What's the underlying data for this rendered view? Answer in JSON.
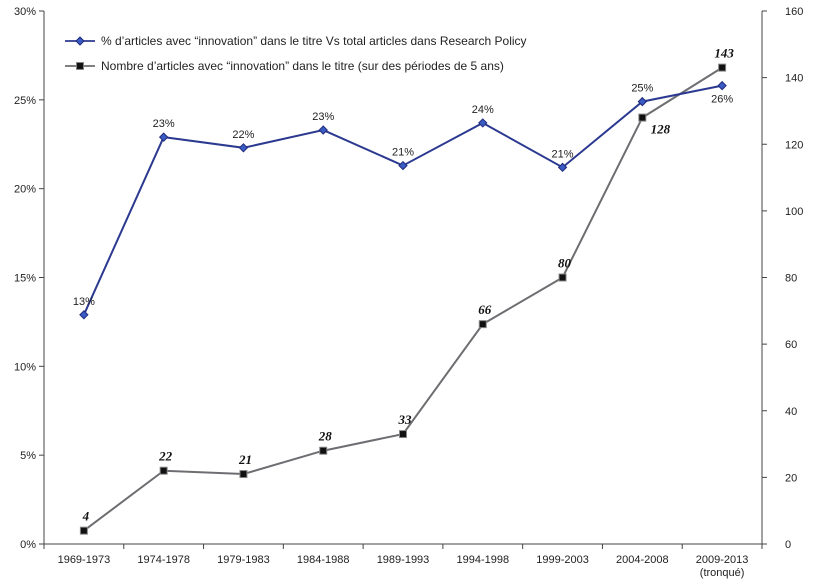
{
  "chart_data": {
    "type": "line",
    "categories": [
      "1969-1973",
      "1974-1978",
      "1979-1983",
      "1984-1988",
      "1989-1993",
      "1994-1998",
      "1999-2003",
      "2004-2008",
      "2009-2013"
    ],
    "category_sublabels": [
      "",
      "",
      "",
      "",
      "",
      "",
      "",
      "",
      "(tronqué)"
    ],
    "series": [
      {
        "name": "% d’articles avec “innovation” dans le titre Vs total articles dans Research Policy",
        "axis": "left",
        "color": "#2b3990",
        "marker": "diamond",
        "values": [
          12.9,
          22.9,
          22.3,
          23.3,
          21.3,
          23.7,
          21.2,
          24.9,
          25.8
        ],
        "labels": [
          "13%",
          "23%",
          "22%",
          "23%",
          "21%",
          "24%",
          "21%",
          "25%",
          "26%"
        ]
      },
      {
        "name": "Nombre d’articles avec “innovation” dans le titre (sur des périodes de 5 ans)",
        "axis": "right",
        "color": "#6d6e71",
        "marker": "square",
        "values": [
          4,
          22,
          21,
          28,
          33,
          66,
          80,
          128,
          143
        ],
        "labels": [
          "4",
          "22",
          "21",
          "28",
          "33",
          "66",
          "80",
          "128",
          "143"
        ]
      }
    ],
    "y_left": {
      "min": 0,
      "max": 30,
      "ticks": [
        0,
        5,
        10,
        15,
        20,
        25,
        30
      ],
      "tick_labels": [
        "0%",
        "5%",
        "10%",
        "15%",
        "20%",
        "25%",
        "30%"
      ]
    },
    "y_right": {
      "min": 0,
      "max": 160,
      "ticks": [
        0,
        20,
        40,
        60,
        80,
        100,
        120,
        140,
        160
      ],
      "tick_labels": [
        "0",
        "20",
        "40",
        "60",
        "80",
        "100",
        "120",
        "140",
        "160"
      ]
    },
    "grid": false,
    "legend_position": "top-left"
  }
}
